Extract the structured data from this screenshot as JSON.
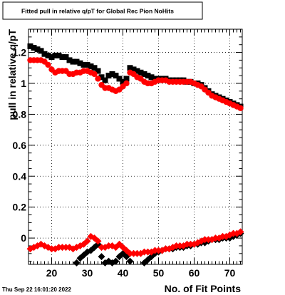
{
  "title": "Fitted pull in relative q/pT for Global Rec Pion NoHits",
  "xlabel": "No. of Fit Points",
  "ylabel": "pull in relative q/pT",
  "timestamp": "Thu Sep 22 16:01:20 2022",
  "chart_data": {
    "type": "scatter",
    "title": "Fitted pull in relative q/pT for Global Rec Pion NoHits",
    "xlabel": "No. of Fit Points",
    "ylabel": "pull in relative q/pT",
    "xlim": [
      13.5,
      73.5
    ],
    "ylim": [
      -0.17,
      1.35
    ],
    "x_ticks": [
      20,
      30,
      40,
      50,
      60,
      70
    ],
    "y_ticks": [
      0,
      0.2,
      0.4,
      0.6,
      0.8,
      1,
      1.2
    ],
    "x_tick_labels": [
      "20",
      "30",
      "40",
      "50",
      "60",
      "70"
    ],
    "y_tick_labels": [
      "0",
      "0.2",
      "0.4",
      "0.6",
      "0.8",
      "1",
      "1.2"
    ],
    "grid": true,
    "series": [
      {
        "color": "#000000",
        "marker": "square",
        "x": [
          14,
          15,
          16,
          17,
          18,
          19,
          20,
          21,
          22,
          23,
          24,
          25,
          26,
          27,
          28,
          29,
          30,
          31,
          32,
          33,
          34,
          35,
          36,
          37,
          38,
          39,
          40,
          41,
          42,
          43,
          44,
          45,
          46,
          47,
          48,
          49,
          50,
          51,
          52,
          53,
          54,
          55,
          56,
          57,
          58,
          59,
          60,
          61,
          62,
          63,
          64,
          65,
          66,
          67,
          68,
          69,
          70,
          71,
          72,
          73
        ],
        "y": [
          1.24,
          1.23,
          1.22,
          1.21,
          1.19,
          1.18,
          1.17,
          1.18,
          1.18,
          1.17,
          1.17,
          1.15,
          1.14,
          1.14,
          1.13,
          1.12,
          1.12,
          1.11,
          1.1,
          1.08,
          1.04,
          1.02,
          1.05,
          1.06,
          1.05,
          1.03,
          1.01,
          1.03,
          1.1,
          1.09,
          1.08,
          1.07,
          1.06,
          1.05,
          1.04,
          1.03,
          1.03,
          1.03,
          1.03,
          1.02,
          1.02,
          1.02,
          1.02,
          1.02,
          1.01,
          1.01,
          1.0,
          1.0,
          0.99,
          0.97,
          0.95,
          0.93,
          0.92,
          0.91,
          0.9,
          0.89,
          0.88,
          0.87,
          0.86,
          0.85
        ]
      },
      {
        "color": "#ff0000",
        "marker": "circle",
        "x": [
          14,
          15,
          16,
          17,
          18,
          19,
          20,
          21,
          22,
          23,
          24,
          25,
          26,
          27,
          28,
          29,
          30,
          31,
          32,
          33,
          34,
          35,
          36,
          37,
          38,
          39,
          40,
          41,
          42,
          43,
          44,
          45,
          46,
          47,
          48,
          49,
          50,
          51,
          52,
          53,
          54,
          55,
          56,
          57,
          58,
          59,
          60,
          61,
          62,
          63,
          64,
          65,
          66,
          67,
          68,
          69,
          70,
          71,
          72,
          73
        ],
        "y": [
          1.15,
          1.15,
          1.15,
          1.15,
          1.14,
          1.12,
          1.09,
          1.07,
          1.08,
          1.08,
          1.08,
          1.06,
          1.06,
          1.07,
          1.07,
          1.08,
          1.08,
          1.07,
          1.06,
          1.03,
          0.99,
          0.97,
          0.97,
          0.96,
          0.95,
          0.96,
          0.98,
          1.0,
          1.07,
          1.06,
          1.04,
          1.03,
          1.01,
          1.0,
          1.0,
          1.01,
          1.02,
          1.02,
          1.02,
          1.01,
          1.01,
          1.01,
          1.01,
          1.01,
          1.01,
          1.01,
          1.0,
          0.99,
          0.98,
          0.96,
          0.94,
          0.92,
          0.91,
          0.9,
          0.89,
          0.88,
          0.87,
          0.86,
          0.85,
          0.84
        ]
      },
      {
        "color": "#000000",
        "marker": "diamond",
        "x": [
          27,
          28,
          29,
          30,
          31,
          32,
          33,
          34,
          35,
          36,
          37,
          38,
          39,
          40,
          41,
          42,
          46,
          47,
          48,
          49,
          50,
          51,
          52,
          53,
          54,
          55,
          56,
          57,
          58,
          59,
          60,
          61,
          62,
          63,
          64,
          65,
          66,
          67,
          68,
          69,
          70,
          71,
          72,
          73
        ],
        "y": [
          -0.16,
          -0.13,
          -0.11,
          -0.09,
          -0.08,
          -0.06,
          -0.04,
          -0.12,
          -0.16,
          -0.15,
          -0.16,
          -0.15,
          -0.12,
          -0.1,
          -0.12,
          -0.15,
          -0.16,
          -0.14,
          -0.12,
          -0.1,
          -0.09,
          -0.08,
          -0.07,
          -0.07,
          -0.07,
          -0.06,
          -0.06,
          -0.06,
          -0.05,
          -0.05,
          -0.04,
          -0.04,
          -0.03,
          -0.03,
          -0.02,
          -0.01,
          -0.01,
          -0.01,
          0.0,
          0.0,
          0.0,
          0.01,
          0.02,
          0.03
        ]
      },
      {
        "color": "#ff0000",
        "marker": "diamond",
        "x": [
          14,
          15,
          16,
          17,
          18,
          19,
          20,
          21,
          22,
          23,
          24,
          25,
          26,
          27,
          28,
          29,
          30,
          31,
          32,
          33,
          34,
          35,
          36,
          37,
          38,
          39,
          40,
          41,
          42,
          43,
          44,
          45,
          46,
          47,
          48,
          49,
          50,
          51,
          52,
          53,
          54,
          55,
          56,
          57,
          58,
          59,
          60,
          61,
          62,
          63,
          64,
          65,
          66,
          67,
          68,
          69,
          70,
          71,
          72,
          73
        ],
        "y": [
          -0.07,
          -0.06,
          -0.05,
          -0.04,
          -0.05,
          -0.06,
          -0.07,
          -0.07,
          -0.06,
          -0.06,
          -0.06,
          -0.06,
          -0.07,
          -0.06,
          -0.05,
          -0.04,
          -0.02,
          0.01,
          0.0,
          -0.02,
          -0.06,
          -0.06,
          -0.05,
          -0.05,
          -0.06,
          -0.04,
          -0.06,
          -0.08,
          -0.1,
          -0.1,
          -0.1,
          -0.1,
          -0.09,
          -0.09,
          -0.09,
          -0.08,
          -0.08,
          -0.08,
          -0.07,
          -0.07,
          -0.06,
          -0.05,
          -0.05,
          -0.05,
          -0.04,
          -0.04,
          -0.04,
          -0.03,
          -0.02,
          -0.01,
          -0.01,
          -0.01,
          0.0,
          0.0,
          0.01,
          0.01,
          0.02,
          0.03,
          0.03,
          0.04
        ]
      }
    ]
  }
}
